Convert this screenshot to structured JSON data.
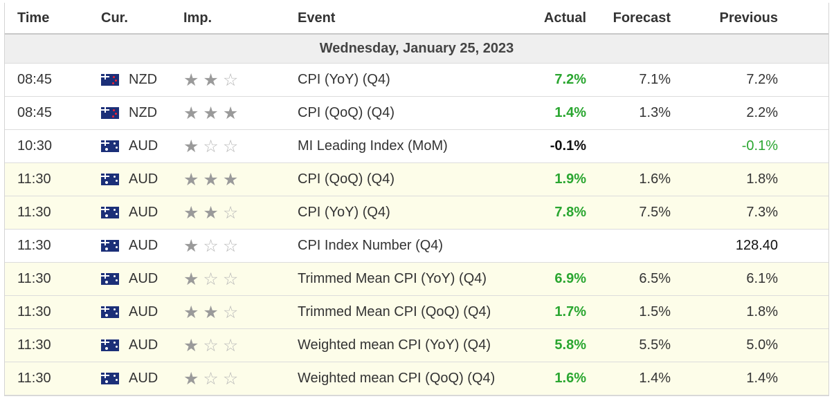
{
  "header": {
    "time": "Time",
    "cur": "Cur.",
    "imp": "Imp.",
    "event": "Event",
    "actual": "Actual",
    "forecast": "Forecast",
    "previous": "Previous"
  },
  "day": "Wednesday, January 25, 2023",
  "colors": {
    "positive": "#2aa630",
    "highlight_row": "#fdfde9",
    "day_row": "#efefef"
  },
  "rows": [
    {
      "time": "08:45",
      "flag": "new-zealand-flag-icon",
      "cur": "NZD",
      "stars": 2,
      "event": "CPI (YoY) (Q4)",
      "actual": "7.2%",
      "actual_color": "green",
      "forecast": "7.1%",
      "previous": "7.2%",
      "previous_color": "plain",
      "highlight": false
    },
    {
      "time": "08:45",
      "flag": "new-zealand-flag-icon",
      "cur": "NZD",
      "stars": 3,
      "event": "CPI (QoQ) (Q4)",
      "actual": "1.4%",
      "actual_color": "green",
      "forecast": "1.3%",
      "previous": "2.2%",
      "previous_color": "plain",
      "highlight": false
    },
    {
      "time": "10:30",
      "flag": "australia-flag-icon",
      "cur": "AUD",
      "stars": 1,
      "event": "MI Leading Index (MoM)",
      "actual": "-0.1%",
      "actual_color": "black",
      "forecast": "",
      "previous": "-0.1%",
      "previous_color": "green-plain",
      "highlight": false
    },
    {
      "time": "11:30",
      "flag": "australia-flag-icon",
      "cur": "AUD",
      "stars": 3,
      "event": "CPI (QoQ) (Q4)",
      "actual": "1.9%",
      "actual_color": "green",
      "forecast": "1.6%",
      "previous": "1.8%",
      "previous_color": "plain",
      "highlight": true
    },
    {
      "time": "11:30",
      "flag": "australia-flag-icon",
      "cur": "AUD",
      "stars": 2,
      "event": "CPI (YoY) (Q4)",
      "actual": "7.8%",
      "actual_color": "green",
      "forecast": "7.5%",
      "previous": "7.3%",
      "previous_color": "plain",
      "highlight": true
    },
    {
      "time": "11:30",
      "flag": "australia-flag-icon",
      "cur": "AUD",
      "stars": 1,
      "event": "CPI Index Number (Q4)",
      "actual": "",
      "actual_color": "green",
      "forecast": "",
      "previous": "128.40",
      "previous_color": "prev-bold",
      "highlight": false
    },
    {
      "time": "11:30",
      "flag": "australia-flag-icon",
      "cur": "AUD",
      "stars": 1,
      "event": "Trimmed Mean CPI (YoY) (Q4)",
      "actual": "6.9%",
      "actual_color": "green",
      "forecast": "6.5%",
      "previous": "6.1%",
      "previous_color": "plain",
      "highlight": true
    },
    {
      "time": "11:30",
      "flag": "australia-flag-icon",
      "cur": "AUD",
      "stars": 2,
      "event": "Trimmed Mean CPI (QoQ) (Q4)",
      "actual": "1.7%",
      "actual_color": "green",
      "forecast": "1.5%",
      "previous": "1.8%",
      "previous_color": "plain",
      "highlight": true
    },
    {
      "time": "11:30",
      "flag": "australia-flag-icon",
      "cur": "AUD",
      "stars": 1,
      "event": "Weighted mean CPI (YoY) (Q4)",
      "actual": "5.8%",
      "actual_color": "green",
      "forecast": "5.5%",
      "previous": "5.0%",
      "previous_color": "plain",
      "highlight": true
    },
    {
      "time": "11:30",
      "flag": "australia-flag-icon",
      "cur": "AUD",
      "stars": 1,
      "event": "Weighted mean CPI (QoQ) (Q4)",
      "actual": "1.6%",
      "actual_color": "green",
      "forecast": "1.4%",
      "previous": "1.4%",
      "previous_color": "plain",
      "highlight": true
    }
  ]
}
